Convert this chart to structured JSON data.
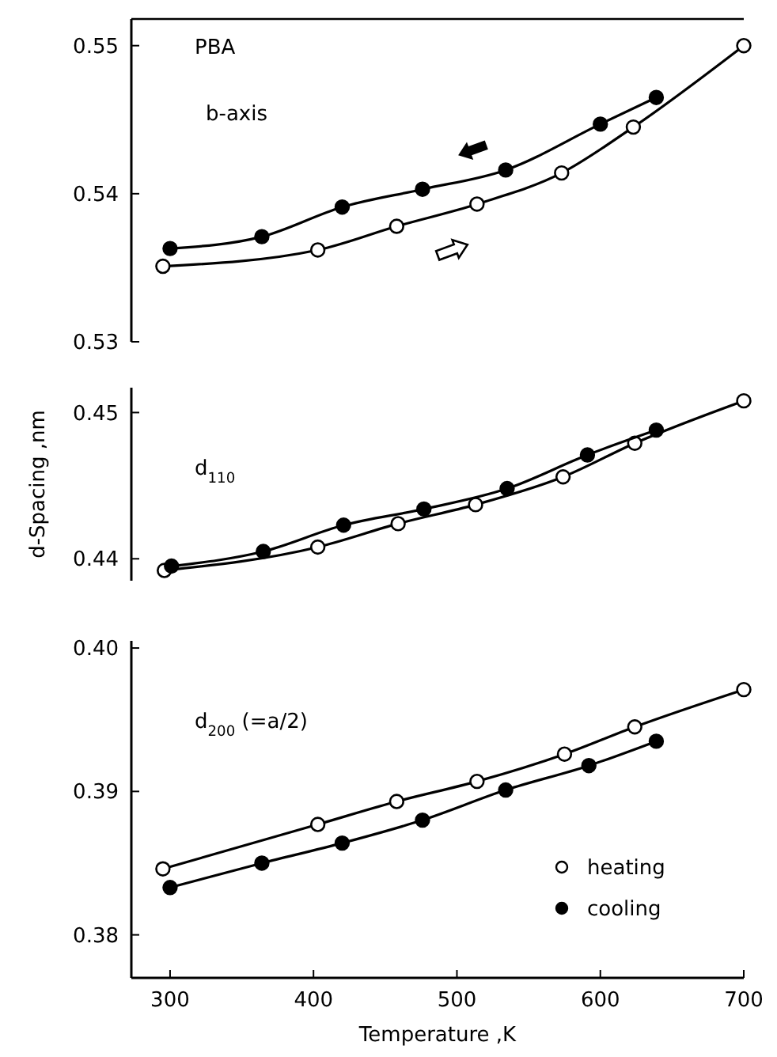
{
  "chart_data": [
    {
      "type": "line",
      "annotations": [
        "PBA",
        "b-axis"
      ],
      "xlim": [
        273,
        700
      ],
      "ylim": [
        0.53,
        0.5518
      ],
      "yticks": [
        0.53,
        0.54,
        0.55
      ],
      "tick_labels": "y",
      "marker": "circle",
      "line_style": "solid",
      "series": [
        {
          "color": "#ffffff",
          "x": [
            295,
            403,
            458,
            514,
            573,
            623,
            700
          ],
          "values": [
            0.5351,
            0.5362,
            0.5378,
            0.5393,
            0.5414,
            0.5445,
            0.55
          ]
        },
        {
          "color": "#000000",
          "x": [
            300,
            364,
            420,
            476,
            534,
            600,
            639
          ],
          "values": [
            0.5363,
            0.5371,
            0.5391,
            0.5403,
            0.5416,
            0.5447,
            0.5465
          ]
        }
      ]
    },
    {
      "type": "line",
      "ylabel": "d-Spacing ,nm",
      "annotations": [
        "d$_{110}$"
      ],
      "xlim": [
        273,
        700
      ],
      "ylim": [
        0.4385,
        0.4517
      ],
      "yticks": [
        0.44,
        0.45
      ],
      "tick_labels": "y",
      "marker": "circle",
      "line_style": "solid",
      "series": [
        {
          "color": "#ffffff",
          "x": [
            296,
            403,
            459,
            513,
            574,
            624,
            700
          ],
          "values": [
            0.4392,
            0.4408,
            0.4424,
            0.4437,
            0.4456,
            0.4479,
            0.4508
          ]
        },
        {
          "color": "#000000",
          "x": [
            301,
            365,
            421,
            477,
            535,
            591,
            639
          ],
          "values": [
            0.4395,
            0.4405,
            0.4423,
            0.4434,
            0.4448,
            0.4471,
            0.4488
          ]
        }
      ]
    },
    {
      "type": "line",
      "xlabel": "Temperature ,K",
      "annotations": [
        "d$_{200}$ (=a/2)"
      ],
      "xlim": [
        273,
        700
      ],
      "xticks": [
        300,
        400,
        500,
        600,
        700
      ],
      "ylim": [
        0.377,
        0.4005
      ],
      "yticks": [
        0.38,
        0.39,
        {
          "value": 0.4,
          "label": "0.40"
        }
      ],
      "legend": "bottom right",
      "marker": "circle",
      "line_style": "solid",
      "series": [
        {
          "name": "heating",
          "color": "#ffffff",
          "x": [
            295,
            403,
            458,
            514,
            575,
            624,
            700
          ],
          "values": [
            0.3846,
            0.3877,
            0.3893,
            0.3907,
            0.3926,
            0.3945,
            0.3971
          ]
        },
        {
          "name": "cooling",
          "color": "#000000",
          "x": [
            300,
            364,
            420,
            476,
            534,
            592,
            639
          ],
          "values": [
            0.3833,
            0.385,
            0.3864,
            0.388,
            0.3901,
            0.3918,
            0.3935
          ]
        }
      ]
    }
  ]
}
